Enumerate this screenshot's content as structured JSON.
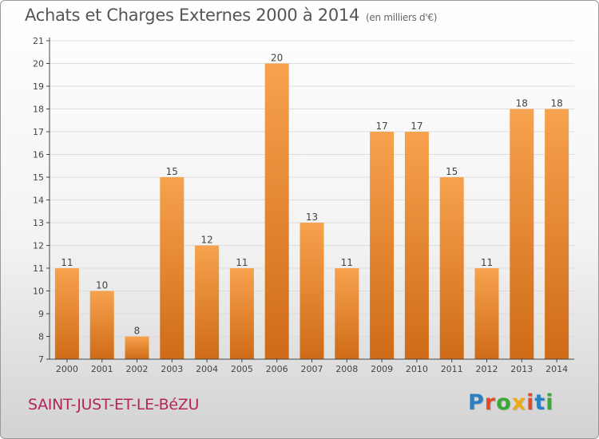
{
  "header": {
    "title": "Achats et Charges Externes 2000 à 2014",
    "unit": "(en milliers d'€)"
  },
  "footer": {
    "commune": "SAINT-JUST-ET-LE-BéZU",
    "logo_text": "Proxiti"
  },
  "colors": {
    "bar_top": "#f7a24e",
    "bar_bottom": "#cf6b16",
    "axis": "#444444",
    "grid": "#dddddd",
    "commune": "#b5245a"
  },
  "chart_data": {
    "type": "bar",
    "title": "Achats et Charges Externes 2000 à 2014",
    "subtitle": "(en milliers d'€)",
    "categories": [
      "2000",
      "2001",
      "2002",
      "2003",
      "2004",
      "2005",
      "2006",
      "2007",
      "2008",
      "2009",
      "2010",
      "2011",
      "2012",
      "2013",
      "2014"
    ],
    "values": [
      11,
      10,
      8,
      15,
      12,
      11,
      20,
      13,
      11,
      17,
      17,
      15,
      11,
      18,
      18
    ],
    "ylim": [
      7,
      21
    ],
    "yticks": [
      7,
      8,
      9,
      10,
      11,
      12,
      13,
      14,
      15,
      16,
      17,
      18,
      19,
      20,
      21
    ],
    "grid": true,
    "data_labels": true
  }
}
